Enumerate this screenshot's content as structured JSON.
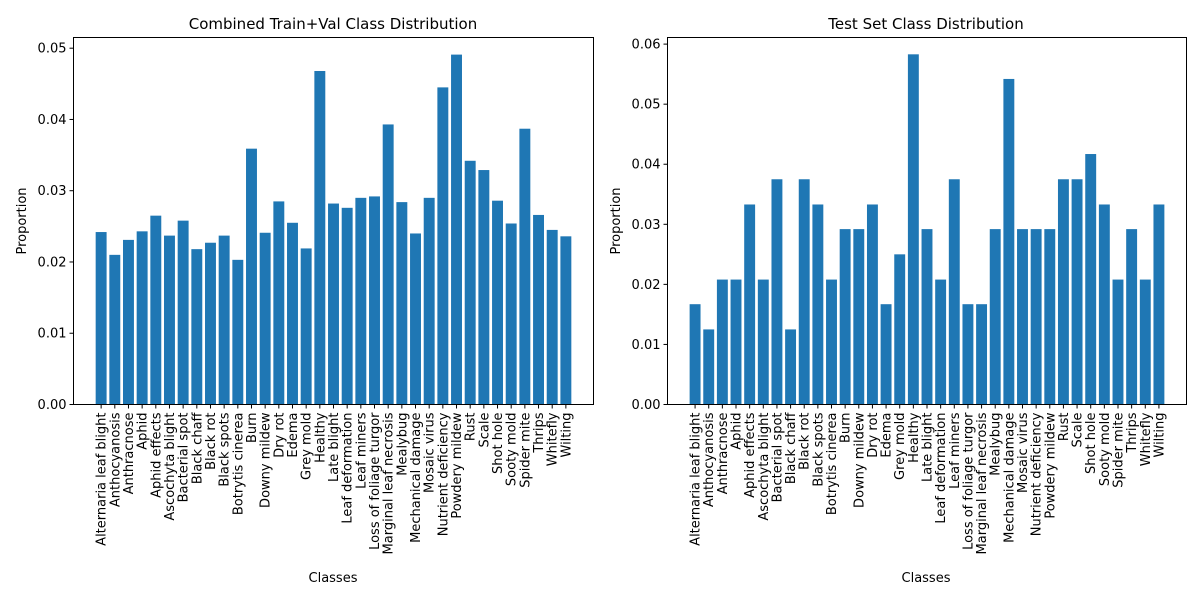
{
  "chart_data": [
    {
      "type": "bar",
      "title": "Combined Train+Val Class Distribution",
      "xlabel": "Classes",
      "ylabel": "Proportion",
      "ylim": [
        0,
        0.0515
      ],
      "yticks": [
        "0.00",
        "0.01",
        "0.02",
        "0.03",
        "0.04",
        "0.05"
      ],
      "bar_color": "#1f77b4",
      "categories": [
        "Alternaria leaf blight",
        "Anthocyanosis",
        "Anthracnose",
        "Aphid",
        "Aphid effects",
        "Ascochyta blight",
        "Bacterial spot",
        "Black chaff",
        "Black rot",
        "Black spots",
        "Botrytis cinerea",
        "Burn",
        "Downy mildew",
        "Dry rot",
        "Edema",
        "Grey mold",
        "Healthy",
        "Late blight",
        "Leaf deformation",
        "Leaf miners",
        "Loss of foliage turgor",
        "Marginal leaf necrosis",
        "Mealybug",
        "Mechanical damage",
        "Mosaic virus",
        "Nutrient deficiency",
        "Powdery mildew",
        "Rust",
        "Scale",
        "Shot hole",
        "Sooty mold",
        "Spider mite",
        "Thrips",
        "Whitefly",
        "Wilting"
      ],
      "values": [
        0.0242,
        0.021,
        0.0231,
        0.0243,
        0.0265,
        0.0237,
        0.0258,
        0.0218,
        0.0227,
        0.0237,
        0.0203,
        0.0359,
        0.0241,
        0.0285,
        0.0255,
        0.0219,
        0.0468,
        0.0282,
        0.0276,
        0.029,
        0.0292,
        0.0393,
        0.0284,
        0.024,
        0.029,
        0.0445,
        0.0491,
        0.0342,
        0.0329,
        0.0286,
        0.0254,
        0.0387,
        0.0266,
        0.0245,
        0.0236
      ]
    },
    {
      "type": "bar",
      "title": "Test Set Class Distribution",
      "xlabel": "Classes",
      "ylabel": "Proportion",
      "ylim": [
        0,
        0.0611
      ],
      "yticks": [
        "0.00",
        "0.01",
        "0.02",
        "0.03",
        "0.04",
        "0.05",
        "0.06"
      ],
      "bar_color": "#1f77b4",
      "categories": [
        "Alternaria leaf blight",
        "Anthocyanosis",
        "Anthracnose",
        "Aphid",
        "Aphid effects",
        "Ascochyta blight",
        "Bacterial spot",
        "Black chaff",
        "Black rot",
        "Black spots",
        "Botrytis cinerea",
        "Burn",
        "Downy mildew",
        "Dry rot",
        "Edema",
        "Grey mold",
        "Healthy",
        "Late blight",
        "Leaf deformation",
        "Leaf miners",
        "Loss of foliage turgor",
        "Marginal leaf necrosis",
        "Mealybug",
        "Mechanical damage",
        "Mosaic virus",
        "Nutrient deficiency",
        "Powdery mildew",
        "Rust",
        "Scale",
        "Shot hole",
        "Sooty mold",
        "Spider mite",
        "Thrips",
        "Whitefly",
        "Wilting"
      ],
      "values": [
        0.0167,
        0.0125,
        0.0208,
        0.0208,
        0.0333,
        0.0208,
        0.0375,
        0.0125,
        0.0375,
        0.0333,
        0.0208,
        0.0292,
        0.0292,
        0.0333,
        0.0167,
        0.025,
        0.0583,
        0.0292,
        0.0208,
        0.0375,
        0.0167,
        0.0167,
        0.0292,
        0.0542,
        0.0292,
        0.0292,
        0.0292,
        0.0375,
        0.0375,
        0.0417,
        0.0333,
        0.0208,
        0.0292,
        0.0208,
        0.0333
      ]
    }
  ]
}
